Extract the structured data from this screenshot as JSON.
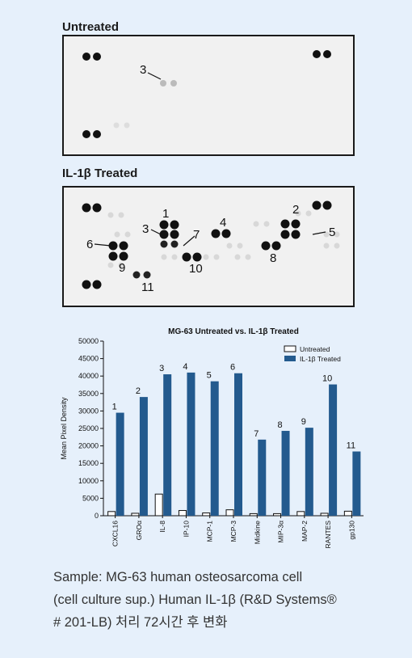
{
  "panels": {
    "untreated_label": "Untreated",
    "treated_label": "IL-1β Treated",
    "untreated_callouts": [
      "3"
    ],
    "treated_callouts": [
      "1",
      "2",
      "3",
      "4",
      "5",
      "6",
      "7",
      "8",
      "9",
      "10",
      "11"
    ]
  },
  "chart_data": {
    "type": "bar",
    "title": "MG-63 Untreated vs. IL-1β Treated",
    "xlabel": "",
    "ylabel": "Mean Pixel Density",
    "ylim": [
      0,
      50000
    ],
    "yticks": [
      0,
      5000,
      10000,
      15000,
      20000,
      25000,
      30000,
      35000,
      40000,
      45000,
      50000
    ],
    "categories": [
      "CXCL16",
      "GROα",
      "IL-8",
      "IP-10",
      "MCP-1",
      "MCP-3",
      "Midkine",
      "MIP-3α",
      "MAP-2",
      "RANTES",
      "gp130"
    ],
    "bar_labels": [
      "1",
      "2",
      "3",
      "4",
      "5",
      "6",
      "7",
      "8",
      "9",
      "10",
      "11"
    ],
    "series": [
      {
        "name": "Untreated",
        "color": "#ffffff",
        "values": [
          1200,
          700,
          6200,
          1500,
          800,
          1700,
          600,
          600,
          1200,
          700,
          1300
        ]
      },
      {
        "name": "IL-1β Treated",
        "color": "#235a8e",
        "values": [
          29500,
          34000,
          40500,
          41000,
          38500,
          40800,
          21800,
          24300,
          25200,
          37600,
          18400
        ]
      }
    ],
    "legend_position": "top-right",
    "grid": false
  },
  "caption": {
    "line1": "Sample: MG-63 human osteosarcoma cell",
    "line2": "(cell culture sup.) Human IL-1β (R&D Systems®",
    "line3": "# 201-LB) 처리 72시간 후 변화"
  }
}
